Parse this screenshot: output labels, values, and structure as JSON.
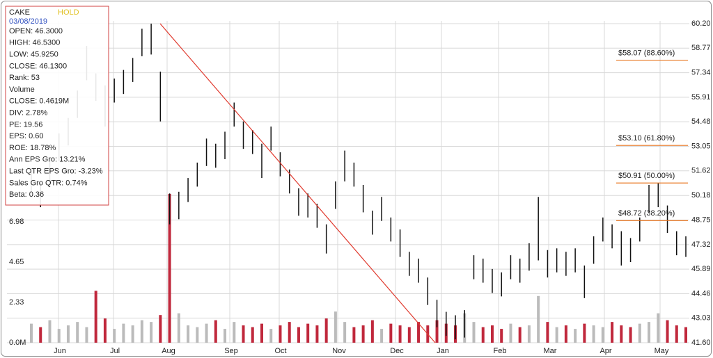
{
  "chart_data": {
    "type": "ohlc",
    "months": [
      "Jun",
      "Jul",
      "Aug",
      "Sep",
      "Oct",
      "Nov",
      "Dec",
      "Jan",
      "Feb",
      "Mar",
      "Apr",
      "May"
    ],
    "high": [
      51.6,
      50.9,
      52.3,
      53.8,
      54.7,
      56.3,
      58.9,
      57.3,
      56.6,
      57.0,
      57.5,
      58.2,
      59.9,
      60.2,
      57.4,
      50.3,
      50.4,
      51.2,
      52.1,
      53.5,
      53.2,
      53.9,
      55.6,
      54.5,
      54.0,
      53.2,
      54.2,
      52.7,
      51.7,
      50.6,
      50.3,
      49.7,
      48.5,
      51.0,
      52.8,
      52.1,
      50.8,
      49.3,
      50.1,
      48.9,
      48.2,
      46.9,
      46.5,
      45.4,
      44.1,
      43.4,
      43.2,
      43.5,
      46.7,
      46.5,
      45.9,
      45.7,
      46.7,
      46.5,
      47.4,
      50.1,
      47.0,
      47.1,
      46.9,
      47.1,
      46.1,
      47.8,
      48.9,
      48.5,
      48.1,
      47.7,
      48.9,
      50.8,
      50.9,
      49.6,
      48.1,
      47.8
    ],
    "low": [
      50.4,
      49.5,
      50.7,
      52.2,
      53.1,
      54.7,
      56.9,
      55.7,
      54.2,
      55.6,
      56.1,
      56.8,
      58.3,
      58.4,
      54.5,
      48.5,
      48.8,
      49.8,
      50.7,
      51.9,
      51.8,
      52.3,
      54.2,
      52.9,
      52.6,
      51.2,
      52.8,
      51.3,
      50.3,
      49.0,
      48.9,
      48.3,
      46.8,
      49.4,
      51.0,
      50.7,
      49.2,
      47.9,
      48.7,
      47.5,
      46.6,
      45.5,
      45.1,
      43.8,
      42.5,
      42.0,
      41.8,
      41.9,
      45.3,
      45.1,
      44.5,
      44.3,
      45.3,
      45.1,
      45.8,
      46.4,
      45.4,
      45.7,
      45.5,
      45.7,
      44.2,
      46.2,
      47.5,
      47.1,
      46.1,
      46.3,
      47.5,
      49.2,
      49.5,
      48.0,
      46.7,
      46.6
    ],
    "volume": [
      1.1,
      0.9,
      1.3,
      0.8,
      1.0,
      1.2,
      0.9,
      3.0,
      1.4,
      0.8,
      1.1,
      1.0,
      1.3,
      1.2,
      1.6,
      8.6,
      1.7,
      1.0,
      0.9,
      1.1,
      1.3,
      0.8,
      1.2,
      1.0,
      0.9,
      1.1,
      0.8,
      1.0,
      1.2,
      0.9,
      1.1,
      1.0,
      1.4,
      1.8,
      1.2,
      0.9,
      1.0,
      1.3,
      0.8,
      1.1,
      1.0,
      0.9,
      1.2,
      1.0,
      1.3,
      1.1,
      1.0,
      1.7,
      1.2,
      0.9,
      1.0,
      0.8,
      1.1,
      0.9,
      1.0,
      2.7,
      1.2,
      0.9,
      1.0,
      0.8,
      1.1,
      1.0,
      0.9,
      1.2,
      1.0,
      0.9,
      1.1,
      1.2,
      1.7,
      1.3,
      1.0,
      0.9
    ],
    "up_color": "#bbbbbb",
    "down_color": "#c0283c",
    "bar_color": "#111111",
    "ylim": [
      41.6,
      60.2
    ],
    "yticks": [
      {
        "value": 60.2,
        "label": "60.20"
      },
      58.77,
      57.34,
      55.91,
      54.48,
      53.05,
      51.62,
      50.18,
      48.75,
      47.32,
      45.89,
      44.46,
      43.03,
      {
        "value": 41.6,
        "label": "41.60"
      }
    ],
    "vol_ylim": [
      0,
      18.44
    ],
    "vol_yticks": [
      {
        "value": 0,
        "label": "0.0M"
      },
      2.33,
      4.65,
      6.98
    ],
    "grid": true,
    "trendline": {
      "values": [
        60.2,
        41.6
      ],
      "color": "#e03a2e"
    },
    "fib_levels": [
      {
        "value": 58.07,
        "label": "$58.07 (88.60%)"
      },
      {
        "value": 53.1,
        "label": "$53.10 (61.80%)"
      },
      {
        "value": 50.91,
        "label": "$50.91 (50.00%)"
      },
      {
        "value": 48.72,
        "label": "$48.72 (38.20%)"
      }
    ],
    "fib_color": "#e8741e",
    "info": {
      "ticker": "CAKE",
      "rating": "HOLD",
      "date": "03/08/2019",
      "lines": [
        "OPEN: 46.3000",
        "HIGH: 46.5300",
        "LOW: 45.9250",
        "CLOSE: 46.1300",
        "Rank: 53",
        "Volume",
        "CLOSE: 0.4619M",
        "DIV: 2.78%",
        "PE: 19.56",
        "EPS: 0.60",
        "ROE: 18.78%",
        "Ann EPS Gro: 13.21%",
        "Last QTR EPS Gro: -3.23%",
        "Sales Gro QTR: 0.74%",
        "Beta: 0.36"
      ]
    }
  }
}
